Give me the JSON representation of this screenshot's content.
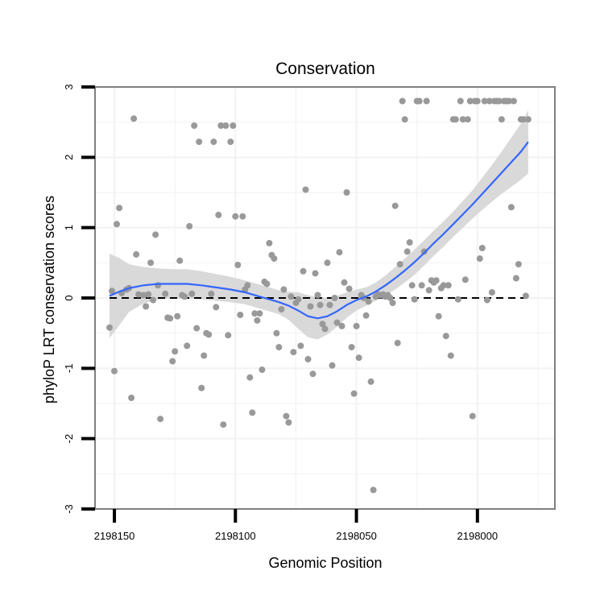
{
  "chart_data": {
    "type": "scatter",
    "title": "Conservation",
    "xlabel": "Genomic Position",
    "ylabel": "phyloP LRT conservation scores",
    "x_reversed": true,
    "xlim": [
      2198158,
      2197968
    ],
    "ylim": [
      -3,
      3
    ],
    "x_ticks": [
      2198150,
      2198100,
      2198050,
      2198000
    ],
    "x_tick_labels": [
      "2198150",
      "2198100",
      "2198050",
      "2198000"
    ],
    "y_ticks": [
      -3,
      -2,
      -1,
      0,
      1,
      2,
      3
    ],
    "y_tick_labels": [
      "-3",
      "-2",
      "-1",
      "0",
      "1",
      "2",
      "3"
    ],
    "grid": true,
    "reference_line": {
      "y": 0,
      "style": "dashed",
      "color": "#000000"
    },
    "point_color": "#999999",
    "smooth_color": "#3366ff",
    "band_color": "#d9d9d9",
    "points": [
      [
        2198152,
        -0.42
      ],
      [
        2198151,
        0.1
      ],
      [
        2198150,
        -1.04
      ],
      [
        2198149,
        1.05
      ],
      [
        2198148,
        1.28
      ],
      [
        2198147,
        0.07
      ],
      [
        2198145,
        0.12
      ],
      [
        2198144,
        0.14
      ],
      [
        2198143,
        -1.42
      ],
      [
        2198142,
        2.55
      ],
      [
        2198141,
        0.62
      ],
      [
        2198140,
        0.05
      ],
      [
        2198138,
        0.04
      ],
      [
        2198137,
        -0.12
      ],
      [
        2198136,
        0.05
      ],
      [
        2198135,
        0.5
      ],
      [
        2198134,
        -0.03
      ],
      [
        2198133,
        0.9
      ],
      [
        2198132,
        0.18
      ],
      [
        2198131,
        -1.72
      ],
      [
        2198129,
        0.06
      ],
      [
        2198128,
        -0.28
      ],
      [
        2198127,
        -0.29
      ],
      [
        2198126,
        -0.9
      ],
      [
        2198125,
        -0.76
      ],
      [
        2198124,
        -0.26
      ],
      [
        2198123,
        0.53
      ],
      [
        2198122,
        0.04
      ],
      [
        2198121,
        0.02
      ],
      [
        2198120,
        -0.68
      ],
      [
        2198119,
        1.02
      ],
      [
        2198118,
        0.06
      ],
      [
        2198117,
        2.45
      ],
      [
        2198116,
        -0.43
      ],
      [
        2198115,
        2.22
      ],
      [
        2198114,
        -1.28
      ],
      [
        2198113,
        -0.82
      ],
      [
        2198112,
        -0.5
      ],
      [
        2198111,
        -0.52
      ],
      [
        2198110,
        0.06
      ],
      [
        2198109,
        2.22
      ],
      [
        2198108,
        -0.13
      ],
      [
        2198107,
        1.18
      ],
      [
        2198106,
        2.45
      ],
      [
        2198105,
        -1.8
      ],
      [
        2198104,
        2.45
      ],
      [
        2198103,
        -0.53
      ],
      [
        2198102,
        2.22
      ],
      [
        2198101,
        2.45
      ],
      [
        2198100,
        1.16
      ],
      [
        2198099,
        0.47
      ],
      [
        2198098,
        -0.24
      ],
      [
        2198097,
        1.16
      ],
      [
        2198096,
        0.12
      ],
      [
        2198095,
        0.18
      ],
      [
        2198094,
        -1.13
      ],
      [
        2198093,
        -1.63
      ],
      [
        2198092,
        -0.22
      ],
      [
        2198091,
        -0.32
      ],
      [
        2198090,
        -0.22
      ],
      [
        2198089,
        -1.02
      ],
      [
        2198088,
        0.23
      ],
      [
        2198087,
        0.2
      ],
      [
        2198086,
        0.78
      ],
      [
        2198085,
        0.61
      ],
      [
        2198084,
        0.56
      ],
      [
        2198083,
        -0.5
      ],
      [
        2198082,
        -0.7
      ],
      [
        2198081,
        -0.16
      ],
      [
        2198080,
        0.12
      ],
      [
        2198079,
        -1.68
      ],
      [
        2198078,
        -1.77
      ],
      [
        2198077,
        0.02
      ],
      [
        2198076,
        -0.77
      ],
      [
        2198075,
        -0.07
      ],
      [
        2198074,
        -0.02
      ],
      [
        2198073,
        -0.68
      ],
      [
        2198072,
        0.38
      ],
      [
        2198071,
        1.54
      ],
      [
        2198070,
        -0.87
      ],
      [
        2198069,
        -0.12
      ],
      [
        2198068,
        -1.08
      ],
      [
        2198067,
        0.35
      ],
      [
        2198066,
        0.04
      ],
      [
        2198065,
        -0.1
      ],
      [
        2198064,
        -0.37
      ],
      [
        2198063,
        -0.44
      ],
      [
        2198062,
        0.5
      ],
      [
        2198061,
        -0.1
      ],
      [
        2198060,
        -0.96
      ],
      [
        2198059,
        0.0
      ],
      [
        2198058,
        -0.35
      ],
      [
        2198057,
        0.65
      ],
      [
        2198056,
        -0.4
      ],
      [
        2198055,
        0.22
      ],
      [
        2198054,
        1.5
      ],
      [
        2198053,
        0.13
      ],
      [
        2198052,
        -0.7
      ],
      [
        2198051,
        -1.36
      ],
      [
        2198050,
        -0.4
      ],
      [
        2198049,
        -0.85
      ],
      [
        2198048,
        0.04
      ],
      [
        2198047,
        0.0
      ],
      [
        2198046,
        -0.25
      ],
      [
        2198045,
        -0.05
      ],
      [
        2198044,
        -1.19
      ],
      [
        2198043,
        -2.73
      ],
      [
        2198042,
        0.02
      ],
      [
        2198041,
        0.05
      ],
      [
        2198040,
        0.04
      ],
      [
        2198039,
        0.05
      ],
      [
        2198038,
        0.02
      ],
      [
        2198037,
        0.04
      ],
      [
        2198036,
        0.0
      ],
      [
        2198035,
        -0.07
      ],
      [
        2198034,
        1.31
      ],
      [
        2198033,
        -0.64
      ],
      [
        2198032,
        0.48
      ],
      [
        2198031,
        2.8
      ],
      [
        2198030,
        2.54
      ],
      [
        2198029,
        0.66
      ],
      [
        2198028,
        0.79
      ],
      [
        2198027,
        0.18
      ],
      [
        2198026,
        -0.02
      ],
      [
        2198025,
        2.8
      ],
      [
        2198024,
        2.8
      ],
      [
        2198023,
        0.18
      ],
      [
        2198022,
        0.66
      ],
      [
        2198021,
        2.8
      ],
      [
        2198020,
        0.11
      ],
      [
        2198019,
        0.25
      ],
      [
        2198018,
        0.22
      ],
      [
        2198017,
        0.25
      ],
      [
        2198016,
        -0.26
      ],
      [
        2198015,
        0.14
      ],
      [
        2198014,
        0.18
      ],
      [
        2198013,
        -0.54
      ],
      [
        2198012,
        0.18
      ],
      [
        2198011,
        -0.82
      ],
      [
        2198010,
        2.54
      ],
      [
        2198009,
        2.54
      ],
      [
        2198008,
        -0.02
      ],
      [
        2198007,
        2.8
      ],
      [
        2198006,
        2.54
      ],
      [
        2198005,
        0.26
      ],
      [
        2198004,
        2.54
      ],
      [
        2198003,
        2.8
      ],
      [
        2198002,
        -1.68
      ],
      [
        2198001,
        2.8
      ],
      [
        2198000,
        2.8
      ],
      [
        2197999,
        0.56
      ],
      [
        2197998,
        0.71
      ],
      [
        2197997,
        2.8
      ],
      [
        2197996,
        -0.03
      ],
      [
        2197995,
        2.8
      ],
      [
        2197994,
        0.08
      ],
      [
        2197993,
        2.8
      ],
      [
        2197992,
        2.8
      ],
      [
        2197991,
        2.8
      ],
      [
        2197990,
        2.54
      ],
      [
        2197989,
        2.8
      ],
      [
        2197988,
        2.8
      ],
      [
        2197987,
        2.8
      ],
      [
        2197986,
        1.29
      ],
      [
        2197985,
        2.8
      ],
      [
        2197984,
        0.28
      ],
      [
        2197983,
        0.48
      ],
      [
        2197982,
        2.54
      ],
      [
        2197981,
        2.54
      ],
      [
        2197980,
        0.03
      ],
      [
        2197979,
        2.54
      ]
    ],
    "smooth": [
      [
        2198152,
        0.03
      ],
      [
        2198148,
        0.09
      ],
      [
        2198144,
        0.14
      ],
      [
        2198138,
        0.18
      ],
      [
        2198132,
        0.2
      ],
      [
        2198126,
        0.2
      ],
      [
        2198120,
        0.2
      ],
      [
        2198114,
        0.18
      ],
      [
        2198108,
        0.15
      ],
      [
        2198102,
        0.12
      ],
      [
        2198096,
        0.08
      ],
      [
        2198090,
        0.02
      ],
      [
        2198086,
        -0.02
      ],
      [
        2198082,
        -0.06
      ],
      [
        2198078,
        -0.11
      ],
      [
        2198074,
        -0.18
      ],
      [
        2198070,
        -0.26
      ],
      [
        2198066,
        -0.29
      ],
      [
        2198062,
        -0.26
      ],
      [
        2198058,
        -0.19
      ],
      [
        2198054,
        -0.1
      ],
      [
        2198050,
        -0.03
      ],
      [
        2198046,
        0.02
      ],
      [
        2198042,
        0.09
      ],
      [
        2198038,
        0.18
      ],
      [
        2198034,
        0.28
      ],
      [
        2198030,
        0.39
      ],
      [
        2198026,
        0.51
      ],
      [
        2198022,
        0.64
      ],
      [
        2198018,
        0.78
      ],
      [
        2198014,
        0.91
      ],
      [
        2198010,
        1.05
      ],
      [
        2198006,
        1.19
      ],
      [
        2198002,
        1.33
      ],
      [
        2197998,
        1.48
      ],
      [
        2197994,
        1.63
      ],
      [
        2197990,
        1.78
      ],
      [
        2197986,
        1.93
      ],
      [
        2197982,
        2.08
      ],
      [
        2197979,
        2.22
      ]
    ],
    "band_halfwidth": [
      0.6,
      0.48,
      0.34,
      0.26,
      0.22,
      0.21,
      0.21,
      0.2,
      0.19,
      0.18,
      0.17,
      0.17,
      0.17,
      0.17,
      0.2,
      0.26,
      0.3,
      0.3,
      0.26,
      0.22,
      0.18,
      0.15,
      0.13,
      0.13,
      0.14,
      0.16,
      0.17,
      0.18,
      0.18,
      0.18,
      0.18,
      0.18,
      0.19,
      0.2,
      0.23,
      0.26,
      0.3,
      0.35,
      0.4,
      0.45
    ]
  }
}
